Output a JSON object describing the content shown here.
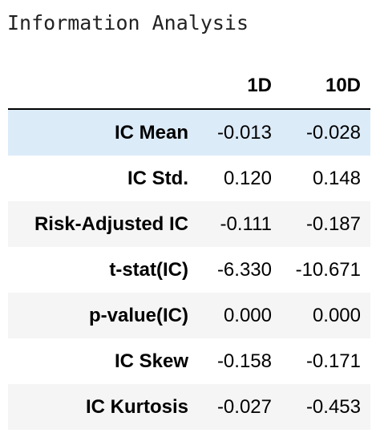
{
  "title": "Information Analysis",
  "table": {
    "columns": [
      "1D",
      "10D"
    ],
    "rows": [
      {
        "label": "IC Mean",
        "values": [
          "-0.013",
          "-0.028"
        ]
      },
      {
        "label": "IC Std.",
        "values": [
          "0.120",
          "0.148"
        ]
      },
      {
        "label": "Risk-Adjusted IC",
        "values": [
          "-0.111",
          "-0.187"
        ]
      },
      {
        "label": "t-stat(IC)",
        "values": [
          "-6.330",
          "-10.671"
        ]
      },
      {
        "label": "p-value(IC)",
        "values": [
          "0.000",
          "0.000"
        ]
      },
      {
        "label": "IC Skew",
        "values": [
          "-0.158",
          "-0.171"
        ]
      },
      {
        "label": "IC Kurtosis",
        "values": [
          "-0.027",
          "-0.453"
        ]
      }
    ]
  },
  "colors": {
    "highlight_row": "#dcebf8",
    "striped_row": "#f5f5f5",
    "header_rule": "#000000"
  }
}
